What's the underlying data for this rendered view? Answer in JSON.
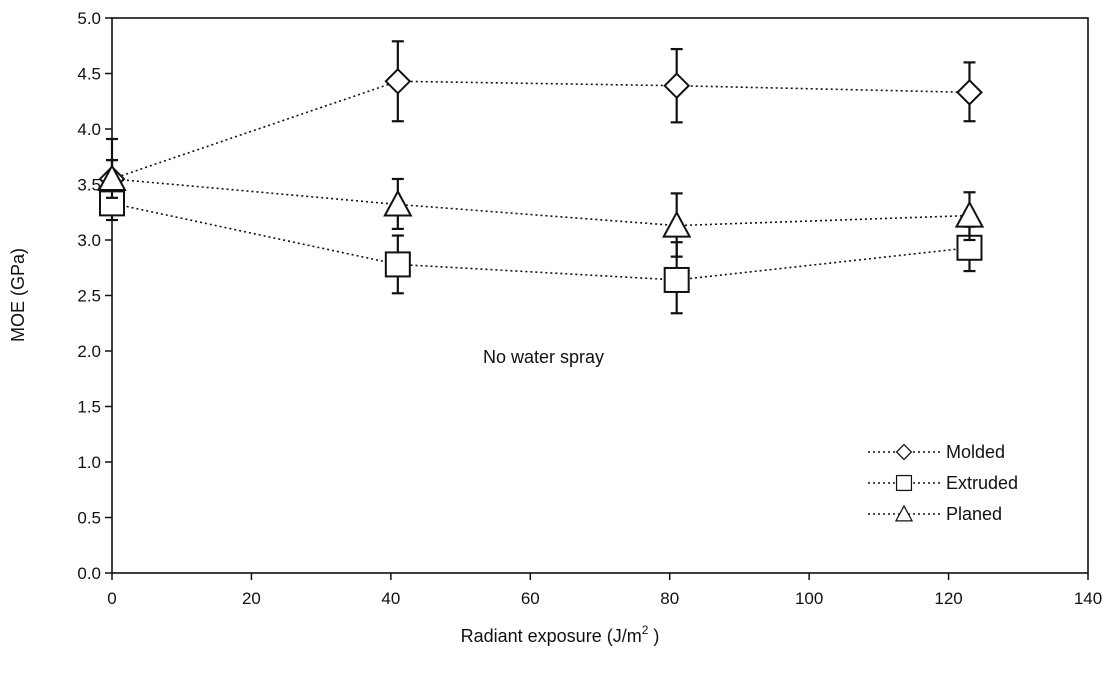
{
  "chart_data": {
    "type": "line",
    "xlabel": "Radiant exposure (J/m",
    "xlabel_sup": "2",
    "xlabel_end": " )",
    "ylabel": "MOE (GPa)",
    "xlim": [
      0,
      140
    ],
    "ylim": [
      0,
      5.0
    ],
    "xticks": [
      "0",
      "20",
      "40",
      "60",
      "80",
      "100",
      "120",
      "140"
    ],
    "yticks": [
      "0.0",
      "0.5",
      "1.0",
      "1.5",
      "2.0",
      "2.5",
      "3.0",
      "3.5",
      "4.0",
      "4.5",
      "5.0"
    ],
    "grid": false,
    "legend_position": "bottom-right",
    "annotation": "No water spray",
    "series": [
      {
        "name": "Molded",
        "marker": "diamond",
        "x": [
          0,
          41,
          81,
          123
        ],
        "y": [
          3.55,
          4.43,
          4.39,
          4.33
        ],
        "err_low": [
          3.42,
          4.07,
          4.06,
          4.07
        ],
        "err_high": [
          3.72,
          4.79,
          4.72,
          4.6
        ]
      },
      {
        "name": "Extruded",
        "marker": "square",
        "x": [
          0,
          41,
          81,
          123
        ],
        "y": [
          3.33,
          2.78,
          2.64,
          2.93
        ],
        "err_low": [
          3.18,
          2.52,
          2.34,
          2.72
        ],
        "err_high": [
          3.91,
          3.04,
          2.98,
          3.12
        ]
      },
      {
        "name": "Planed",
        "marker": "triangle",
        "x": [
          0,
          41,
          81,
          123
        ],
        "y": [
          3.55,
          3.32,
          3.13,
          3.22
        ],
        "err_low": [
          3.38,
          3.1,
          2.85,
          3.0
        ],
        "err_high": [
          3.72,
          3.55,
          3.42,
          3.43
        ]
      }
    ]
  }
}
